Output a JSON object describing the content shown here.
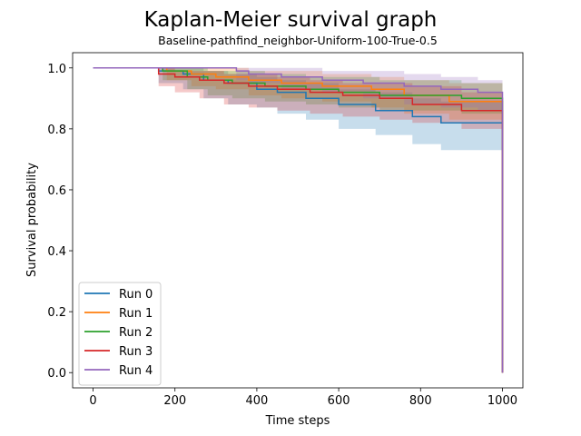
{
  "chart_data": {
    "type": "line",
    "title": "Kaplan-Meier survival graph",
    "subtitle": "Baseline-pathfind_neighbor-Uniform-100-True-0.5",
    "xlabel": "Time steps",
    "ylabel": "Survival probability",
    "xlim": [
      -50,
      1050
    ],
    "ylim": [
      -0.05,
      1.05
    ],
    "xticks": [
      0,
      200,
      400,
      600,
      800,
      1000
    ],
    "yticks": [
      0.0,
      0.2,
      0.4,
      0.6,
      0.8,
      1.0
    ],
    "xtick_labels": [
      "0",
      "200",
      "400",
      "600",
      "800",
      "1000"
    ],
    "ytick_labels": [
      "0.0",
      "0.2",
      "0.4",
      "0.6",
      "0.8",
      "1.0"
    ],
    "legend_position": "lower-left",
    "series": [
      {
        "name": "Run 0",
        "color": "#1f77b4",
        "x": [
          0,
          160,
          220,
          270,
          330,
          400,
          450,
          520,
          600,
          690,
          780,
          850,
          1000,
          1000
        ],
        "y": [
          1.0,
          0.99,
          0.98,
          0.96,
          0.95,
          0.93,
          0.92,
          0.9,
          0.88,
          0.86,
          0.84,
          0.82,
          0.81,
          0.0
        ],
        "lower": [
          1.0,
          0.95,
          0.93,
          0.9,
          0.88,
          0.87,
          0.85,
          0.83,
          0.8,
          0.78,
          0.75,
          0.73,
          0.72,
          0.72
        ],
        "upper": [
          1.0,
          1.0,
          1.0,
          0.99,
          0.98,
          0.97,
          0.96,
          0.95,
          0.93,
          0.92,
          0.9,
          0.89,
          0.88,
          0.88
        ]
      },
      {
        "name": "Run 1",
        "color": "#ff7f0e",
        "x": [
          0,
          180,
          240,
          300,
          380,
          460,
          560,
          680,
          760,
          870,
          1000,
          1000
        ],
        "y": [
          1.0,
          0.99,
          0.98,
          0.97,
          0.96,
          0.95,
          0.94,
          0.93,
          0.91,
          0.89,
          0.88,
          0.0
        ],
        "lower": [
          1.0,
          0.96,
          0.94,
          0.93,
          0.91,
          0.9,
          0.89,
          0.87,
          0.85,
          0.83,
          0.82,
          0.82
        ],
        "upper": [
          1.0,
          1.0,
          1.0,
          1.0,
          0.99,
          0.99,
          0.98,
          0.97,
          0.96,
          0.95,
          0.94,
          0.94
        ]
      },
      {
        "name": "Run 2",
        "color": "#2ca02c",
        "x": [
          0,
          170,
          230,
          280,
          340,
          420,
          520,
          600,
          700,
          900,
          1000,
          1000
        ],
        "y": [
          1.0,
          0.99,
          0.97,
          0.96,
          0.95,
          0.94,
          0.93,
          0.92,
          0.91,
          0.9,
          0.9,
          0.0
        ],
        "lower": [
          1.0,
          0.96,
          0.93,
          0.91,
          0.9,
          0.89,
          0.88,
          0.87,
          0.86,
          0.85,
          0.85,
          0.85
        ],
        "upper": [
          1.0,
          1.0,
          1.0,
          0.99,
          0.99,
          0.98,
          0.97,
          0.97,
          0.96,
          0.95,
          0.95,
          0.95
        ]
      },
      {
        "name": "Run 3",
        "color": "#d62728",
        "x": [
          0,
          160,
          200,
          260,
          320,
          380,
          450,
          530,
          610,
          700,
          780,
          900,
          1000,
          1000
        ],
        "y": [
          1.0,
          0.98,
          0.97,
          0.96,
          0.95,
          0.94,
          0.93,
          0.92,
          0.91,
          0.9,
          0.88,
          0.86,
          0.85,
          0.0
        ],
        "lower": [
          1.0,
          0.94,
          0.92,
          0.9,
          0.88,
          0.87,
          0.86,
          0.85,
          0.84,
          0.83,
          0.82,
          0.8,
          0.79,
          0.79
        ],
        "upper": [
          1.0,
          1.0,
          0.99,
          0.99,
          0.98,
          0.98,
          0.97,
          0.96,
          0.95,
          0.95,
          0.94,
          0.92,
          0.91,
          0.91
        ]
      },
      {
        "name": "Run 4",
        "color": "#9467bd",
        "x": [
          0,
          350,
          380,
          460,
          560,
          660,
          760,
          850,
          940,
          1000,
          1000
        ],
        "y": [
          1.0,
          0.99,
          0.98,
          0.97,
          0.96,
          0.95,
          0.94,
          0.93,
          0.92,
          0.92,
          0.0
        ],
        "lower": [
          1.0,
          0.96,
          0.95,
          0.93,
          0.92,
          0.9,
          0.88,
          0.87,
          0.86,
          0.86,
          0.86
        ],
        "upper": [
          1.0,
          1.0,
          1.0,
          1.0,
          0.99,
          0.99,
          0.98,
          0.97,
          0.96,
          0.96,
          0.96
        ]
      }
    ]
  }
}
